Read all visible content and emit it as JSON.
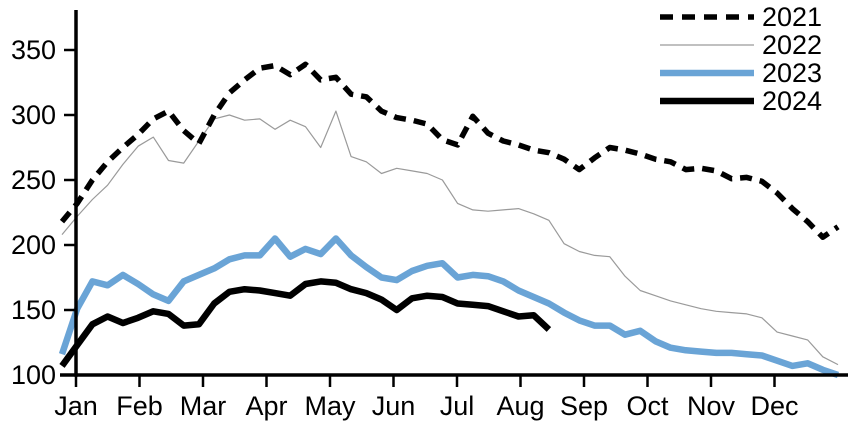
{
  "chart_data": {
    "type": "line",
    "title": "",
    "xlabel": "",
    "ylabel": "",
    "grid": false,
    "legend_position": "top-right",
    "x_axis": {
      "tick_labels": [
        "Jan",
        "Feb",
        "Mar",
        "Apr",
        "May",
        "Jun",
        "Jul",
        "Aug",
        "Sep",
        "Oct",
        "Nov",
        "Dec"
      ]
    },
    "y_axis": {
      "ticks": [
        100,
        150,
        200,
        250,
        300,
        350
      ],
      "range": [
        100,
        350
      ]
    },
    "x_resolution": "weekly (52 points per year)",
    "series": [
      {
        "name": "2021",
        "color": "#000000",
        "style": "dashed",
        "width": 5.5,
        "values": [
          218,
          232,
          250,
          264,
          275,
          285,
          297,
          303,
          288,
          278,
          300,
          317,
          327,
          336,
          338,
          331,
          339,
          327,
          329,
          316,
          314,
          303,
          298,
          296,
          293,
          281,
          277,
          299,
          286,
          280,
          277,
          273,
          271,
          266,
          258,
          267,
          275,
          273,
          270,
          266,
          264,
          258,
          259,
          257,
          251,
          252,
          249,
          240,
          228,
          218,
          206,
          214
        ]
      },
      {
        "name": "2022",
        "color": "#9a9a9a",
        "style": "solid",
        "width": 1.2,
        "values": [
          208,
          222,
          235,
          246,
          262,
          276,
          283,
          265,
          263,
          280,
          297,
          300,
          296,
          297,
          289,
          296,
          291,
          275,
          303,
          268,
          264,
          255,
          259,
          257,
          255,
          250,
          232,
          227,
          226,
          227,
          228,
          224,
          219,
          201,
          195,
          192,
          191,
          176,
          165,
          161,
          157,
          154,
          151,
          149,
          148,
          147,
          144,
          133,
          130,
          127,
          114,
          108
        ]
      },
      {
        "name": "2023",
        "color": "#6aa4d6",
        "style": "solid",
        "width": 6.5,
        "values": [
          116,
          151,
          172,
          169,
          177,
          170,
          162,
          157,
          172,
          177,
          182,
          189,
          192,
          192,
          205,
          191,
          197,
          193,
          205,
          192,
          183,
          175,
          173,
          180,
          184,
          186,
          175,
          177,
          176,
          172,
          165,
          160,
          155,
          148,
          142,
          138,
          138,
          131,
          134,
          126,
          121,
          119,
          118,
          117,
          117,
          116,
          115,
          111,
          107,
          109,
          104,
          100
        ]
      },
      {
        "name": "2024",
        "color": "#000000",
        "style": "solid",
        "width": 6.5,
        "values": [
          107,
          123,
          139,
          145,
          140,
          144,
          149,
          147,
          138,
          139,
          155,
          164,
          166,
          165,
          163,
          161,
          170,
          172,
          171,
          166,
          163,
          158,
          150,
          159,
          161,
          160,
          155,
          154,
          153,
          149,
          145,
          146,
          135
        ]
      }
    ]
  }
}
